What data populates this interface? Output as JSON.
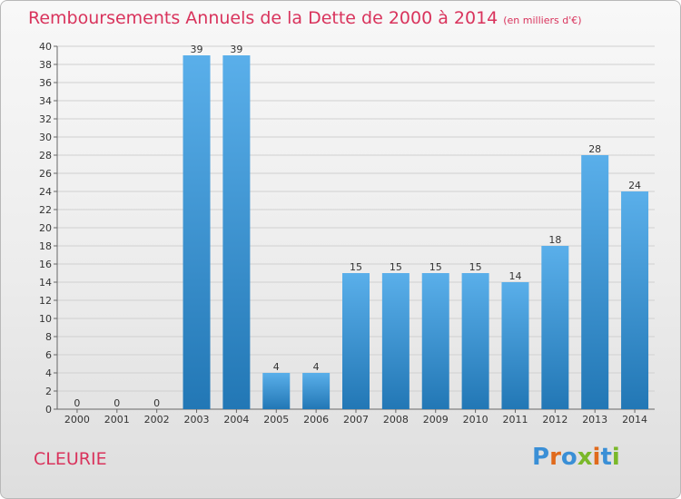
{
  "title": "Remboursements Annuels de la Dette de 2000 à 2014",
  "subtitle": "(en milliers d'€)",
  "commune": "CLEURIE",
  "logo": {
    "letters": [
      "P",
      "r",
      "o",
      "x",
      "i",
      "t",
      "i"
    ],
    "colors": [
      "#3a8fd6",
      "#e06a1c",
      "#3a8fd6",
      "#7ab82a",
      "#e06a1c",
      "#3a8fd6",
      "#7ab82a"
    ]
  },
  "colors": {
    "bar_light": "#5aafea",
    "bar_dark": "#2277b5",
    "accent": "#d9335c"
  },
  "chart_data": {
    "type": "bar",
    "categories": [
      "2000",
      "2001",
      "2002",
      "2003",
      "2004",
      "2005",
      "2006",
      "2007",
      "2008",
      "2009",
      "2010",
      "2011",
      "2012",
      "2013",
      "2014"
    ],
    "values": [
      0,
      0,
      0,
      39,
      39,
      4,
      4,
      15,
      15,
      15,
      15,
      14,
      18,
      28,
      24
    ],
    "ylim": [
      0,
      40
    ],
    "yticks": [
      0,
      2,
      4,
      6,
      8,
      10,
      12,
      14,
      16,
      18,
      20,
      22,
      24,
      26,
      28,
      30,
      32,
      34,
      36,
      38,
      40
    ],
    "grid": true
  }
}
